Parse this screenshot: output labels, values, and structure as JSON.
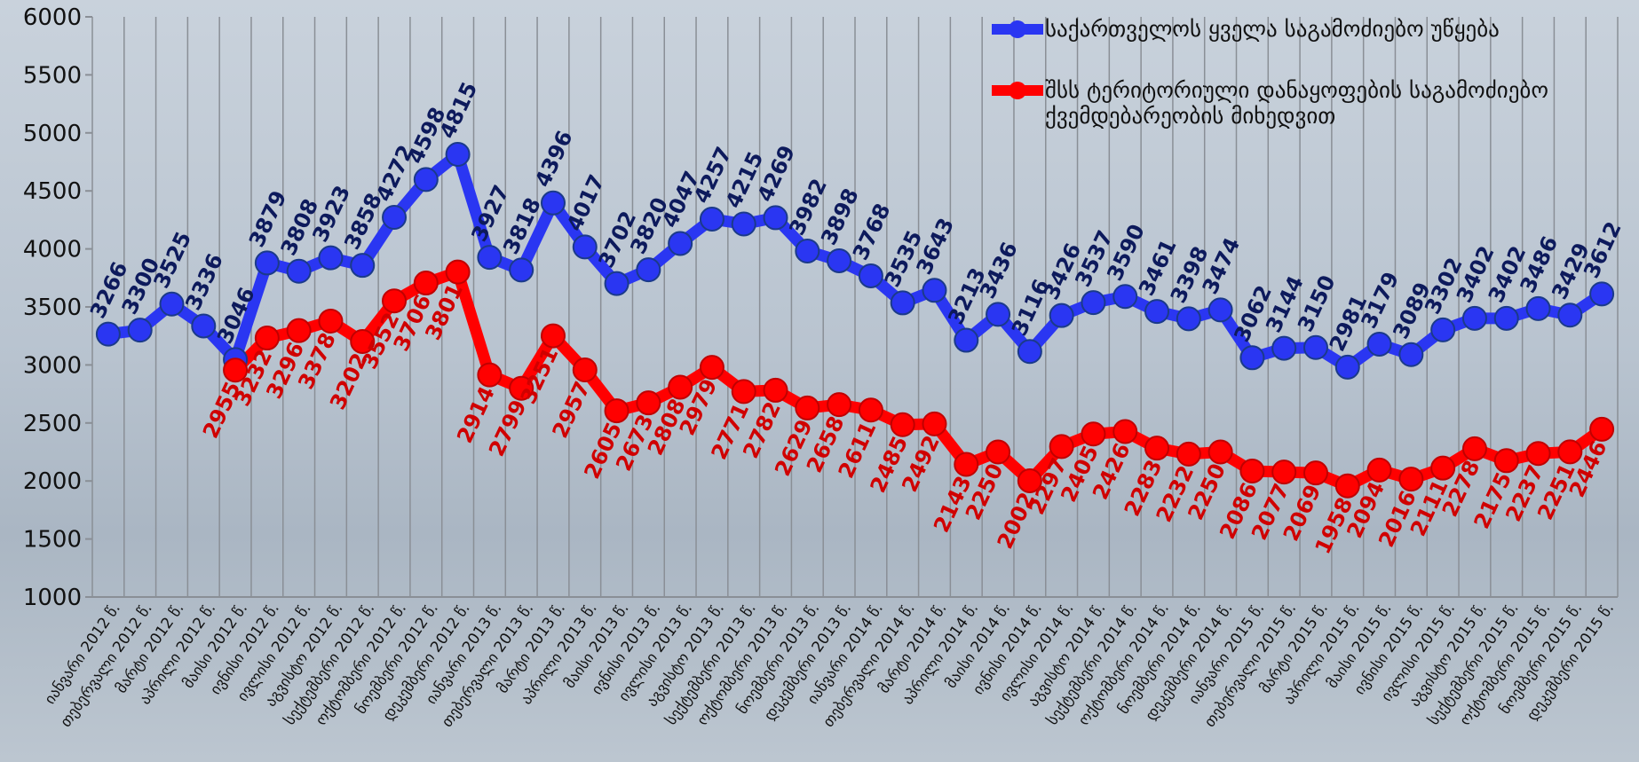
{
  "chart_data": {
    "type": "line",
    "categories": [
      "იანვარი 2012 წ.",
      "თებერვალი 2012 წ.",
      "მარტი 2012 წ.",
      "აპრილი 2012 წ.",
      "მაისი 2012 წ.",
      "ივნისი 2012 წ.",
      "ივლისი 2012 წ.",
      "აგვისტო 2012 წ.",
      "სექტემბერი 2012 წ.",
      "ოქტომბერი 2012 წ.",
      "ნოემბერი 2012 წ.",
      "დეკემბერი 2012 წ.",
      "იანვარი 2013 წ.",
      "თებერვალი 2013 წ.",
      "მარტი 2013 წ.",
      "აპრილი 2013 წ.",
      "მაისი 2013 წ.",
      "ივნისი 2013 წ.",
      "ივლისი 2013 წ.",
      "აგვისტო 2013 წ.",
      "სექტემბერი 2013 წ.",
      "ოქტომბერი 2013 წ.",
      "ნოემბერი 2013 წ.",
      "დეკემბერი 2013 წ.",
      "იანვარი 2014 წ.",
      "თებერვალი 2014 წ.",
      "მარტი 2014 წ.",
      "აპრილი 2014 წ.",
      "მაისი 2014 წ.",
      "ივნისი 2014 წ.",
      "ივლისი 2014 წ.",
      "აგვისტო 2014 წ.",
      "სექტემბერი 2014 წ.",
      "ოქტომბერი 2014 წ.",
      "ნოემბერი 2014 წ.",
      "დეკემბერი 2014 წ.",
      "იანვარი 2015 წ.",
      "თებერვალი 2015 წ.",
      "მარტი 2015 წ.",
      "აპრილი 2015 წ.",
      "მაისი 2015 წ.",
      "ივნისი 2015 წ.",
      "ივლისი 2015 წ.",
      "აგვისტო 2015 წ.",
      "სექტემბერი 2015 წ.",
      "ოქტომბერი 2015 წ.",
      "ნოემბერი 2015 წ.",
      "დეკემბერი 2015 წ."
    ],
    "series": [
      {
        "name": "საქართველოს ყველა საგამოძიებო უწყება",
        "color": "#2a36f2",
        "values": [
          3266,
          3300,
          3525,
          3336,
          3046,
          3879,
          3808,
          3923,
          3858,
          4272,
          4598,
          4815,
          3927,
          3818,
          4396,
          4017,
          3702,
          3820,
          4047,
          4257,
          4215,
          4269,
          3982,
          3898,
          3768,
          3535,
          3643,
          3213,
          3436,
          3116,
          3426,
          3537,
          3590,
          3461,
          3398,
          3474,
          3062,
          3144,
          3150,
          2981,
          3179,
          3089,
          3302,
          3402,
          3402,
          3486,
          3429,
          3612
        ]
      },
      {
        "name": "შსს ტერიტორიული დანაყოფების საგამოძიებო ქვემდებარეობის მიხედვით",
        "color": "#ff0000",
        "values": [
          null,
          null,
          null,
          null,
          2955,
          3232,
          3296,
          3378,
          3202,
          3552,
          3706,
          3801,
          2914,
          2799,
          3251,
          2957,
          2605,
          2673,
          2808,
          2979,
          2771,
          2782,
          2629,
          2658,
          2611,
          2485,
          2492,
          2143,
          2250,
          2002,
          2297,
          2405,
          2426,
          2283,
          2232,
          2250,
          2086,
          2077,
          2069,
          1958,
          2094,
          2016,
          2111,
          2278,
          2175,
          2237,
          2251,
          2446
        ]
      }
    ],
    "ylim": [
      1000,
      6000
    ],
    "yticks": [
      1000,
      1500,
      2000,
      2500,
      3000,
      3500,
      4000,
      4500,
      5000,
      5500,
      6000
    ],
    "grid": true,
    "legend": "top-right"
  }
}
